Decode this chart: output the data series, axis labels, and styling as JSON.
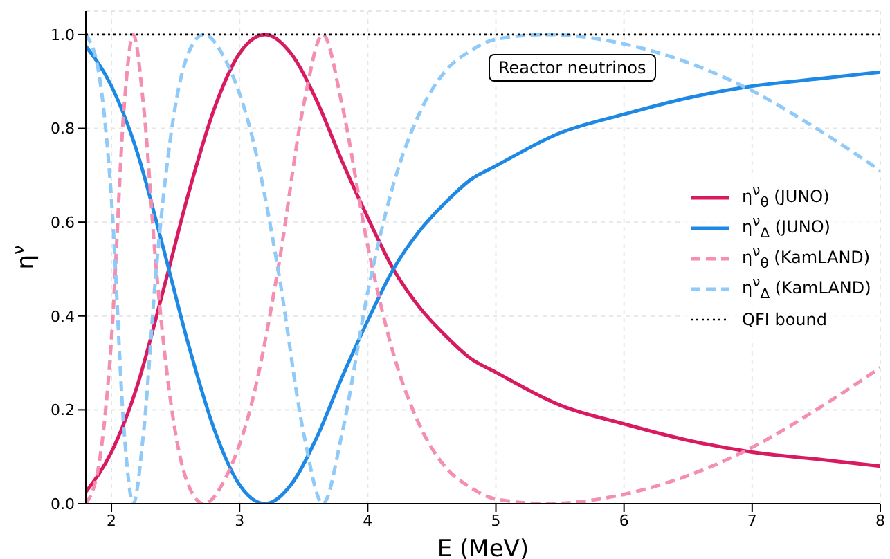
{
  "chart_data": {
    "type": "line",
    "xlabel": "E (MeV)",
    "ylabel": "η$^{ν}$",
    "xlim": [
      1.8,
      8
    ],
    "ylim": [
      0,
      1.05
    ],
    "xticks": [
      2,
      3,
      4,
      5,
      6,
      7,
      8
    ],
    "yticks": [
      {
        "value": 0,
        "label": "0.0"
      },
      0.2,
      0.4,
      0.6,
      0.8,
      {
        "value": 1,
        "label": "1.0"
      }
    ],
    "grid": true,
    "legend": "right",
    "marker": "none",
    "annotations": [
      "Reactor neutrinos"
    ],
    "series": [
      {
        "name": "η$^{ν}$$_{θ}$ (JUNO)",
        "color": "#d81b60",
        "line_style": "solid",
        "x": [
          1.8,
          2.0,
          2.2,
          2.4,
          2.6,
          2.8,
          3.0,
          3.2,
          3.4,
          3.6,
          3.8,
          4.0,
          4.2,
          4.4,
          4.6,
          4.8,
          5.0,
          5.5,
          6.0,
          6.5,
          7.0,
          7.5,
          8.0
        ],
        "values": [
          0.025,
          0.11,
          0.25,
          0.45,
          0.66,
          0.84,
          0.96,
          1.0,
          0.96,
          0.86,
          0.73,
          0.61,
          0.5,
          0.42,
          0.36,
          0.31,
          0.28,
          0.21,
          0.17,
          0.135,
          0.11,
          0.095,
          0.08
        ]
      },
      {
        "name": "η$^{ν}$$_{Δ}$ (JUNO)",
        "color": "#1e88e5",
        "line_style": "solid",
        "x": [
          1.8,
          2.0,
          2.2,
          2.4,
          2.6,
          2.8,
          3.0,
          3.2,
          3.4,
          3.6,
          3.8,
          4.0,
          4.2,
          4.4,
          4.6,
          4.8,
          5.0,
          5.5,
          6.0,
          6.5,
          7.0,
          7.5,
          8.0
        ],
        "values": [
          0.975,
          0.89,
          0.75,
          0.55,
          0.34,
          0.16,
          0.04,
          0.0,
          0.04,
          0.14,
          0.27,
          0.39,
          0.5,
          0.58,
          0.64,
          0.69,
          0.72,
          0.79,
          0.83,
          0.865,
          0.89,
          0.905,
          0.92
        ]
      },
      {
        "name": "η$^{ν}$$_{θ}$ (KamLAND)",
        "color": "#f48fb1",
        "line_style": "dashed",
        "x": [
          1.8,
          1.9,
          2.0,
          2.1,
          2.17,
          2.25,
          2.35,
          2.5,
          2.6,
          2.72,
          2.9,
          3.1,
          3.3,
          3.5,
          3.65,
          3.8,
          4.0,
          4.2,
          4.4,
          4.6,
          4.8,
          5.0,
          5.4,
          6.0,
          6.5,
          7.0,
          7.5,
          8.0
        ],
        "values": [
          0.0,
          0.08,
          0.35,
          0.85,
          1.0,
          0.85,
          0.5,
          0.15,
          0.04,
          0.0,
          0.06,
          0.22,
          0.5,
          0.85,
          1.0,
          0.85,
          0.55,
          0.32,
          0.17,
          0.08,
          0.035,
          0.01,
          0.0,
          0.02,
          0.06,
          0.12,
          0.2,
          0.29
        ]
      },
      {
        "name": "η$^{ν}$$_{Δ}$ (KamLAND)",
        "color": "#90caf9",
        "line_style": "dashed",
        "x": [
          1.8,
          1.9,
          2.0,
          2.1,
          2.17,
          2.25,
          2.35,
          2.5,
          2.6,
          2.72,
          2.9,
          3.1,
          3.3,
          3.5,
          3.65,
          3.8,
          4.0,
          4.2,
          4.4,
          4.6,
          4.8,
          5.0,
          5.4,
          6.0,
          6.5,
          7.0,
          7.5,
          8.0
        ],
        "values": [
          1.0,
          0.92,
          0.65,
          0.15,
          0.0,
          0.15,
          0.5,
          0.85,
          0.96,
          1.0,
          0.94,
          0.78,
          0.5,
          0.15,
          0.0,
          0.15,
          0.45,
          0.68,
          0.83,
          0.92,
          0.965,
          0.99,
          1.0,
          0.98,
          0.94,
          0.88,
          0.8,
          0.71
        ]
      },
      {
        "name": "QFI bound",
        "color": "#000000",
        "line_style": "dotted",
        "x": [
          1.8,
          8
        ],
        "values": [
          1,
          1
        ]
      }
    ]
  }
}
